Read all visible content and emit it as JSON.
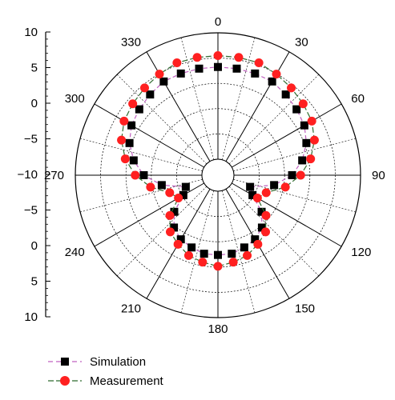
{
  "chart_data": {
    "type": "polar-scatter",
    "radial_tick_labels": [
      "10",
      "5",
      "0",
      "−5",
      "−10",
      "−5",
      "0",
      "5",
      "10"
    ],
    "angle_tick_labels": [
      {
        "angle": 0,
        "label": "0"
      },
      {
        "angle": 30,
        "label": "30"
      },
      {
        "angle": 60,
        "label": "60"
      },
      {
        "angle": 90,
        "label": "90"
      },
      {
        "angle": 120,
        "label": "120"
      },
      {
        "angle": 150,
        "label": "150"
      },
      {
        "angle": 180,
        "label": "180"
      },
      {
        "angle": 210,
        "label": "210"
      },
      {
        "angle": 240,
        "label": "240"
      },
      {
        "angle": 270,
        "label": "270"
      },
      {
        "angle": 300,
        "label": "300"
      },
      {
        "angle": 330,
        "label": "330"
      }
    ],
    "r_range": [
      -15,
      10
    ],
    "series": [
      {
        "name": "Simulation",
        "color": "#000000",
        "line_color": "#c060c0",
        "marker": "square",
        "points": [
          {
            "angle": 0,
            "r": 4
          },
          {
            "angle": 10,
            "r": 4
          },
          {
            "angle": 20,
            "r": 4
          },
          {
            "angle": 30,
            "r": 4
          },
          {
            "angle": 40,
            "r": 3.5
          },
          {
            "angle": 50,
            "r": 3
          },
          {
            "angle": 60,
            "r": 2.5
          },
          {
            "angle": 70,
            "r": 1.5
          },
          {
            "angle": 80,
            "r": 0
          },
          {
            "angle": 90,
            "r": -2
          },
          {
            "angle": 100,
            "r": -5
          },
          {
            "angle": 110,
            "r": -9
          },
          {
            "angle": 120,
            "r": -8
          },
          {
            "angle": 130,
            "r": -5
          },
          {
            "angle": 140,
            "r": -3
          },
          {
            "angle": 150,
            "r": -2
          },
          {
            "angle": 160,
            "r": -1.5
          },
          {
            "angle": 170,
            "r": -1
          },
          {
            "angle": 180,
            "r": -1
          },
          {
            "angle": 190,
            "r": -1
          },
          {
            "angle": 200,
            "r": -1.5
          },
          {
            "angle": 210,
            "r": -2
          },
          {
            "angle": 220,
            "r": -3
          },
          {
            "angle": 230,
            "r": -5
          },
          {
            "angle": 240,
            "r": -8
          },
          {
            "angle": 250,
            "r": -9
          },
          {
            "angle": 260,
            "r": -5
          },
          {
            "angle": 270,
            "r": -2
          },
          {
            "angle": 280,
            "r": 0
          },
          {
            "angle": 290,
            "r": 1.5
          },
          {
            "angle": 300,
            "r": 2.5
          },
          {
            "angle": 310,
            "r": 3
          },
          {
            "angle": 320,
            "r": 3.5
          },
          {
            "angle": 330,
            "r": 4
          },
          {
            "angle": 340,
            "r": 4
          },
          {
            "angle": 350,
            "r": 4
          }
        ]
      },
      {
        "name": "Measurement",
        "color": "#ff2020",
        "line_color": "#2f6b2f",
        "marker": "circle",
        "points": [
          {
            "angle": 0,
            "r": 6
          },
          {
            "angle": 10,
            "r": 6
          },
          {
            "angle": 20,
            "r": 6
          },
          {
            "angle": 30,
            "r": 5.5
          },
          {
            "angle": 40,
            "r": 5
          },
          {
            "angle": 50,
            "r": 4.5
          },
          {
            "angle": 60,
            "r": 4
          },
          {
            "angle": 70,
            "r": 3
          },
          {
            "angle": 80,
            "r": 1.5
          },
          {
            "angle": 90,
            "r": -0.5
          },
          {
            "angle": 100,
            "r": -3
          },
          {
            "angle": 110,
            "r": -6
          },
          {
            "angle": 120,
            "r": -7
          },
          {
            "angle": 130,
            "r": -4
          },
          {
            "angle": 140,
            "r": -2
          },
          {
            "angle": 150,
            "r": -1
          },
          {
            "angle": 160,
            "r": 0
          },
          {
            "angle": 170,
            "r": 0.5
          },
          {
            "angle": 180,
            "r": 1
          },
          {
            "angle": 190,
            "r": 0.5
          },
          {
            "angle": 200,
            "r": 0
          },
          {
            "angle": 210,
            "r": -1
          },
          {
            "angle": 220,
            "r": -2
          },
          {
            "angle": 230,
            "r": -4
          },
          {
            "angle": 240,
            "r": -7
          },
          {
            "angle": 250,
            "r": -6
          },
          {
            "angle": 260,
            "r": -3
          },
          {
            "angle": 270,
            "r": -0.5
          },
          {
            "angle": 280,
            "r": 1.5
          },
          {
            "angle": 290,
            "r": 3
          },
          {
            "angle": 300,
            "r": 4
          },
          {
            "angle": 310,
            "r": 4.5
          },
          {
            "angle": 320,
            "r": 5
          },
          {
            "angle": 330,
            "r": 5.5
          },
          {
            "angle": 340,
            "r": 6
          },
          {
            "angle": 350,
            "r": 6
          }
        ]
      }
    ],
    "grid": true,
    "legend_position": "bottom-left"
  }
}
